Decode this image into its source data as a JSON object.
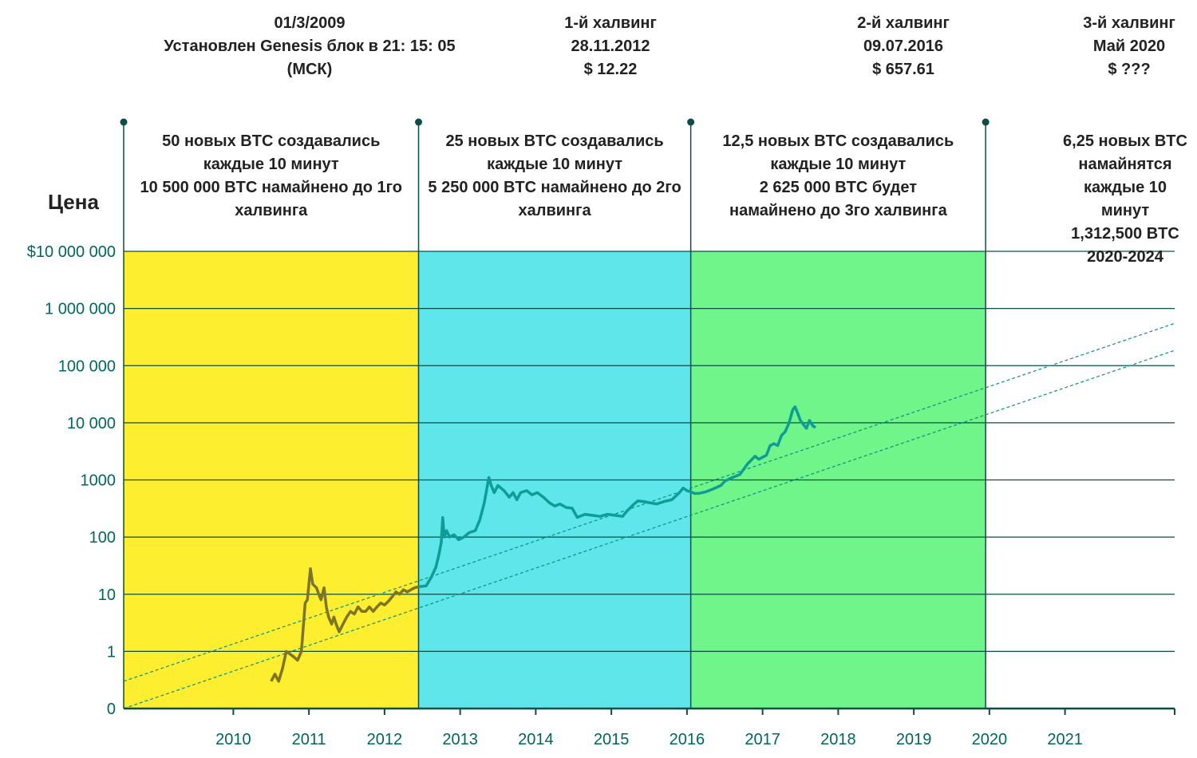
{
  "chart_data": {
    "type": "line",
    "ylabel": "Цена",
    "yscale": "log",
    "y_ticks": [
      {
        "label": "$10 000 000",
        "value": 10000000
      },
      {
        "label": "1 000 000",
        "value": 1000000
      },
      {
        "label": "100 000",
        "value": 100000
      },
      {
        "label": "10 000",
        "value": 10000
      },
      {
        "label": "1000",
        "value": 1000
      },
      {
        "label": "100",
        "value": 100
      },
      {
        "label": "10",
        "value": 10
      },
      {
        "label": "1",
        "value": 1
      },
      {
        "label": "0",
        "value": 0.1
      }
    ],
    "x_ticks": [
      "2010",
      "2011",
      "2012",
      "2013",
      "2014",
      "2015",
      "2016",
      "2017",
      "2018",
      "2019",
      "2020",
      "2021"
    ],
    "xlim": [
      2009.05,
      2022.95
    ],
    "ylim": [
      0.1,
      10000000
    ],
    "periods": [
      {
        "start": 2009.05,
        "end": 2012.95,
        "color": "#fdee2f",
        "reward_text": [
          "50 новых BTC создавались",
          "каждые 10 минут",
          "10 500 000 BTC намайнено до 1го",
          "халвинга"
        ]
      },
      {
        "start": 2012.95,
        "end": 2016.55,
        "color": "#5ee6ea",
        "reward_text": [
          "25 новых BTC создавались",
          "каждые 10 минут",
          "5 250 000 BTC намайнено до 2го",
          "халвинга"
        ]
      },
      {
        "start": 2016.55,
        "end": 2020.45,
        "color": "#6ff58a",
        "reward_text": [
          "12,5 новых BTC создавались",
          "каждые 10 минут",
          "2 625 000 BTC будет",
          "намайнено до 3го халвинга"
        ]
      },
      {
        "start": 2020.45,
        "end": 2022.95,
        "color": "#ffffff",
        "reward_text": [
          "6,25 новых BTC",
          "намайнятся",
          "каждые 10",
          "минут",
          "1,312,500 BTC",
          "2020-2024"
        ]
      }
    ],
    "events": [
      {
        "x": 2009.05,
        "lines": [
          "01/3/2009",
          "Установлен Genesis блок в 21: 15: 05",
          "(МСК)"
        ]
      },
      {
        "x": 2012.95,
        "lines": [
          "1-й халвинг",
          "28.11.2012",
          "$ 12.22"
        ]
      },
      {
        "x": 2016.55,
        "lines": [
          "2-й халвинг",
          "09.07.2016",
          "$ 657.61"
        ]
      },
      {
        "x": 2020.45,
        "lines": [
          "3-й халвинг",
          "Май 2020",
          "$ ???"
        ]
      }
    ],
    "trend_lines": [
      {
        "x": [
          2009.05,
          2022.95
        ],
        "y": [
          0.3,
          550000
        ]
      },
      {
        "x": [
          2009.05,
          2022.95
        ],
        "y": [
          0.1,
          185000
        ]
      }
    ],
    "series": [
      {
        "segment_colors": [
          "#7d7524",
          "#0e9d96"
        ],
        "color_change_x": 2012.95,
        "x": [
          2011.0,
          2011.05,
          2011.1,
          2011.15,
          2011.2,
          2011.25,
          2011.3,
          2011.35,
          2011.4,
          2011.45,
          2011.48,
          2011.5,
          2011.52,
          2011.55,
          2011.6,
          2011.63,
          2011.66,
          2011.7,
          2011.73,
          2011.76,
          2011.8,
          2011.83,
          2011.86,
          2011.9,
          2011.95,
          2012.0,
          2012.05,
          2012.1,
          2012.15,
          2012.2,
          2012.25,
          2012.3,
          2012.35,
          2012.4,
          2012.45,
          2012.5,
          2012.55,
          2012.6,
          2012.65,
          2012.7,
          2012.75,
          2012.8,
          2012.85,
          2012.9,
          2012.95,
          2013.05,
          2013.12,
          2013.18,
          2013.22,
          2013.25,
          2013.27,
          2013.29,
          2013.32,
          2013.36,
          2013.42,
          2013.48,
          2013.55,
          2013.62,
          2013.7,
          2013.76,
          2013.82,
          2013.88,
          2013.91,
          2013.95,
          2014.0,
          2014.08,
          2014.15,
          2014.2,
          2014.25,
          2014.3,
          2014.38,
          2014.45,
          2014.52,
          2014.6,
          2014.68,
          2014.75,
          2014.82,
          2014.9,
          2014.98,
          2015.05,
          2015.08,
          2015.15,
          2015.25,
          2015.35,
          2015.45,
          2015.55,
          2015.65,
          2015.7,
          2015.8,
          2015.85,
          2015.92,
          2016.0,
          2016.1,
          2016.2,
          2016.3,
          2016.4,
          2016.45,
          2016.5,
          2016.55,
          2016.6,
          2016.65,
          2016.75,
          2016.85,
          2016.95,
          2017.0,
          2017.1,
          2017.2,
          2017.3,
          2017.4,
          2017.45,
          2017.5,
          2017.55,
          2017.6,
          2017.65,
          2017.7,
          2017.75,
          2017.8,
          2017.85,
          2017.9,
          2017.93,
          2017.97,
          2018.0,
          2018.05,
          2018.08,
          2018.12,
          2018.16,
          2018.2
        ],
        "y": [
          0.3,
          0.4,
          0.3,
          0.5,
          1.0,
          0.9,
          0.8,
          0.7,
          1.0,
          7.0,
          8.0,
          15.0,
          28.0,
          15.0,
          13.0,
          10.0,
          8.0,
          13.0,
          6.0,
          4.0,
          3.0,
          4.0,
          3.0,
          2.2,
          3.0,
          4.0,
          5.0,
          4.5,
          6.0,
          5.0,
          5.0,
          6.0,
          5.0,
          6.0,
          7.0,
          6.5,
          7.5,
          9.0,
          11.0,
          10.0,
          12.0,
          11.0,
          12.0,
          13.0,
          13.5,
          14.0,
          20.0,
          30.0,
          50.0,
          80.0,
          220.0,
          100.0,
          130.0,
          100.0,
          110.0,
          90.0,
          100.0,
          120.0,
          130.0,
          200.0,
          400.0,
          1100.0,
          800.0,
          600.0,
          800.0,
          650.0,
          500.0,
          600.0,
          450.0,
          600.0,
          650.0,
          550.0,
          600.0,
          500.0,
          400.0,
          350.0,
          380.0,
          330.0,
          320.0,
          220.0,
          230.0,
          250.0,
          240.0,
          230.0,
          250.0,
          240.0,
          230.0,
          280.0,
          380.0,
          430.0,
          420.0,
          400.0,
          380.0,
          420.0,
          450.0,
          600.0,
          720.0,
          650.0,
          620.0,
          580.0,
          580.0,
          620.0,
          700.0,
          800.0,
          950.0,
          1100.0,
          1250.0,
          1900.0,
          2600.0,
          2300.0,
          2500.0,
          2700.0,
          4000.0,
          4300.0,
          4000.0,
          6000.0,
          7000.0,
          10000.0,
          17000.0,
          19000.0,
          14000.0,
          11000.0,
          9000.0,
          8000.0,
          11000.0,
          9000.0,
          8200.0
        ]
      }
    ]
  }
}
